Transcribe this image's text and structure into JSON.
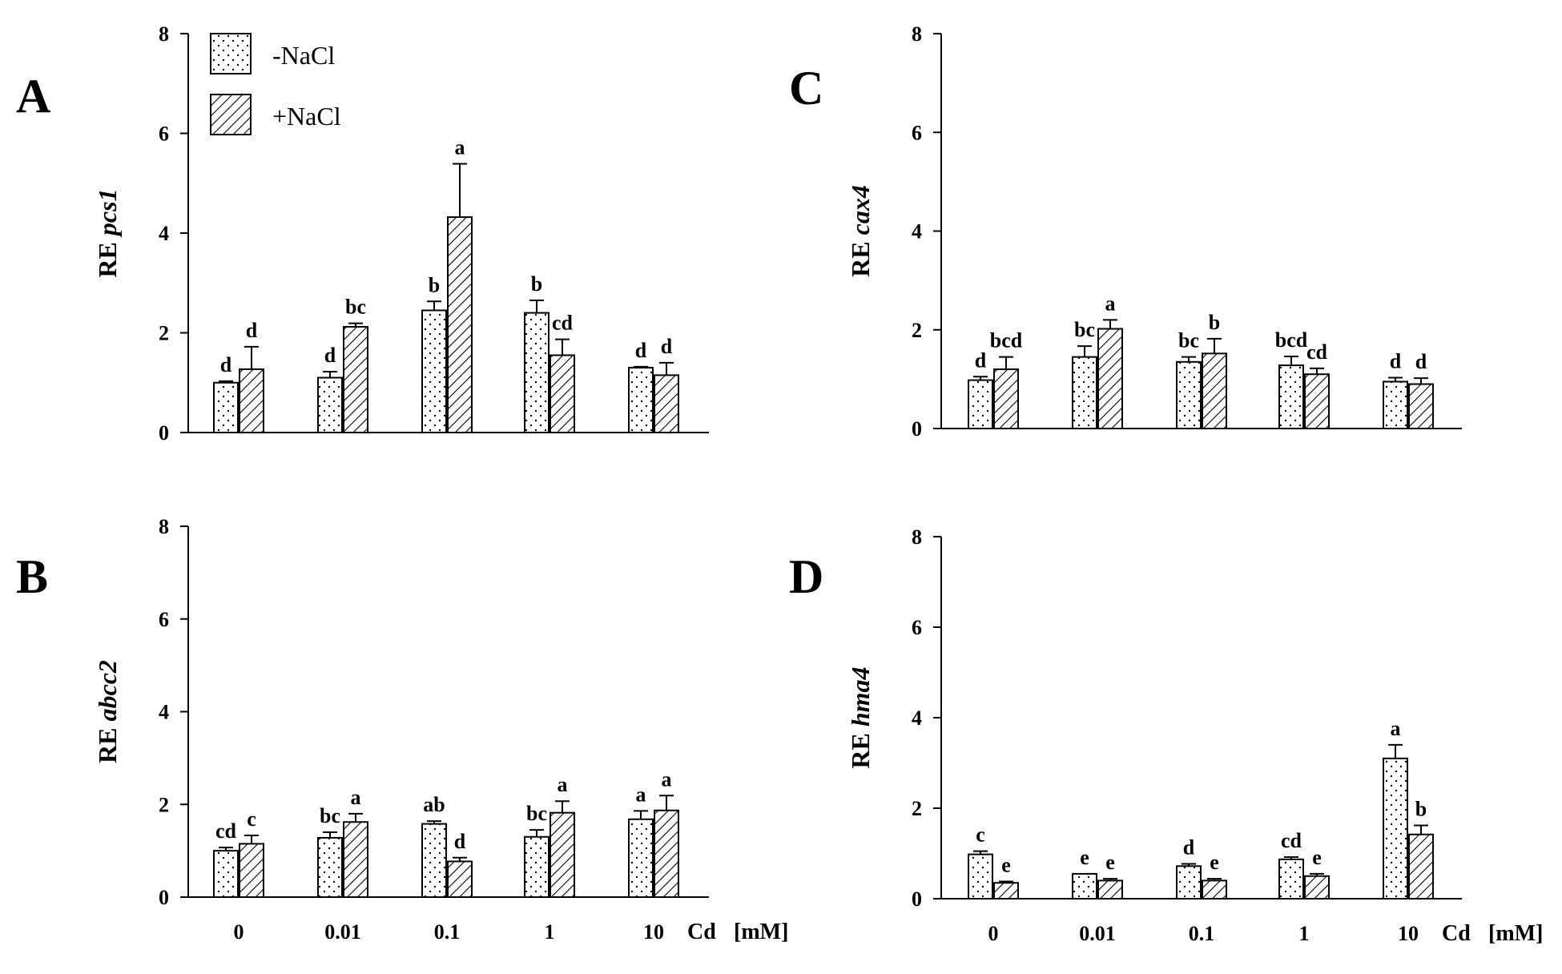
{
  "chart_data": {
    "type": "bar",
    "categories": [
      "0",
      "0.01",
      "0.1",
      "1",
      "10"
    ],
    "x_axis_title": "Cd",
    "x_axis_unit": "[mM]",
    "legend": [
      {
        "name": "-NaCl",
        "pattern": "dots"
      },
      {
        "name": "+NaCl",
        "pattern": "hatch"
      }
    ],
    "ylim": [
      0,
      8
    ],
    "yticks": [
      "0",
      "2",
      "4",
      "6",
      "8"
    ],
    "panels": [
      {
        "id": "A",
        "ylabel_prefix": "RE",
        "ylabel_gene": "pcs1",
        "series": [
          {
            "name": "-NaCl",
            "values": [
              1.0,
              1.1,
              2.45,
              2.4,
              1.3
            ],
            "errors": [
              0.03,
              0.12,
              0.18,
              0.25,
              0.02
            ],
            "letters": [
              "d",
              "d",
              "b",
              "b",
              "d"
            ]
          },
          {
            "name": "+NaCl",
            "values": [
              1.27,
              2.12,
              4.32,
              1.55,
              1.15
            ],
            "errors": [
              0.45,
              0.07,
              1.07,
              0.32,
              0.25
            ],
            "letters": [
              "d",
              "bc",
              "a",
              "cd",
              "d"
            ]
          }
        ]
      },
      {
        "id": "B",
        "ylabel_prefix": "RE",
        "ylabel_gene": "abcc2",
        "series": [
          {
            "name": "-NaCl",
            "values": [
              1.0,
              1.28,
              1.58,
              1.3,
              1.68
            ],
            "errors": [
              0.07,
              0.12,
              0.06,
              0.15,
              0.18
            ],
            "letters": [
              "cd",
              "bc",
              "ab",
              "bc",
              "a"
            ]
          },
          {
            "name": "+NaCl",
            "values": [
              1.15,
              1.62,
              0.77,
              1.82,
              1.87
            ],
            "errors": [
              0.18,
              0.18,
              0.08,
              0.25,
              0.32
            ],
            "letters": [
              "c",
              "a",
              "d",
              "a",
              "a"
            ]
          }
        ]
      },
      {
        "id": "C",
        "ylabel_prefix": "RE",
        "ylabel_gene": "cax4",
        "series": [
          {
            "name": "-NaCl",
            "values": [
              0.98,
              1.45,
              1.35,
              1.28,
              0.95
            ],
            "errors": [
              0.07,
              0.22,
              0.1,
              0.18,
              0.08
            ],
            "letters": [
              "d",
              "bc",
              "bc",
              "bcd",
              "d"
            ]
          },
          {
            "name": "+NaCl",
            "values": [
              1.2,
              2.02,
              1.52,
              1.1,
              0.9
            ],
            "errors": [
              0.25,
              0.18,
              0.3,
              0.12,
              0.12
            ],
            "letters": [
              "bcd",
              "a",
              "b",
              "cd",
              "d"
            ]
          }
        ]
      },
      {
        "id": "D",
        "ylabel_prefix": "RE",
        "ylabel_gene": "hma4",
        "series": [
          {
            "name": "-NaCl",
            "values": [
              0.98,
              0.55,
              0.72,
              0.87,
              3.1
            ],
            "errors": [
              0.07,
              0.0,
              0.05,
              0.05,
              0.3
            ],
            "letters": [
              "c",
              "e",
              "d",
              "cd",
              "a"
            ]
          },
          {
            "name": "+NaCl",
            "values": [
              0.35,
              0.4,
              0.4,
              0.5,
              1.42
            ],
            "errors": [
              0.03,
              0.04,
              0.04,
              0.05,
              0.2
            ],
            "letters": [
              "e",
              "e",
              "e",
              "e",
              "b"
            ]
          }
        ]
      }
    ]
  }
}
